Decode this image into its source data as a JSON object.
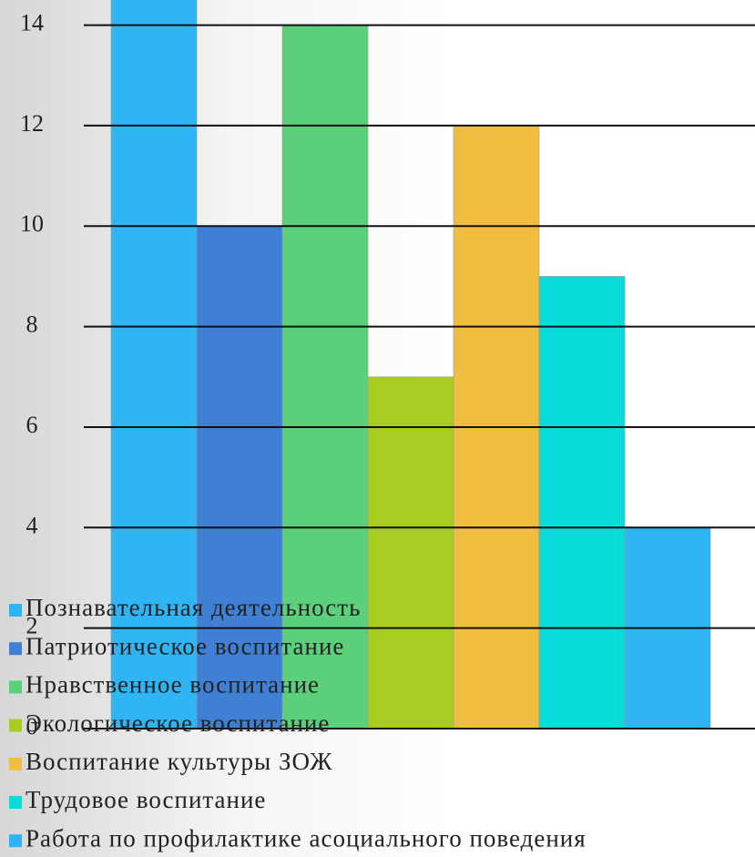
{
  "chart_data": {
    "type": "bar",
    "categories": [
      null
    ],
    "series": [
      {
        "name": "Познавательная деятельность",
        "color": "#2fb4f6",
        "values": [
          15
        ]
      },
      {
        "name": "Патриотическое воспитание",
        "color": "#3f80d4",
        "values": [
          10
        ]
      },
      {
        "name": "Нравственное воспитание",
        "color": "#5ccf7b",
        "values": [
          14
        ]
      },
      {
        "name": "Экологическое  воспитание",
        "color": "#a8cd22",
        "values": [
          7
        ]
      },
      {
        "name": "Воспитание культуры ЗОЖ",
        "color": "#f0bd40",
        "values": [
          12
        ]
      },
      {
        "name": "Трудовое воспитание",
        "color": "#08dcd8",
        "values": [
          9
        ]
      },
      {
        "name": "Работа по профилактике асоциального поведения",
        "color": "#2fb4f6",
        "values": [
          4
        ]
      }
    ],
    "ylim": [
      0,
      14.5
    ],
    "yticks": [
      0,
      2,
      4,
      6,
      8,
      10,
      12,
      14
    ],
    "grid": true,
    "legend": "bottom-left"
  }
}
